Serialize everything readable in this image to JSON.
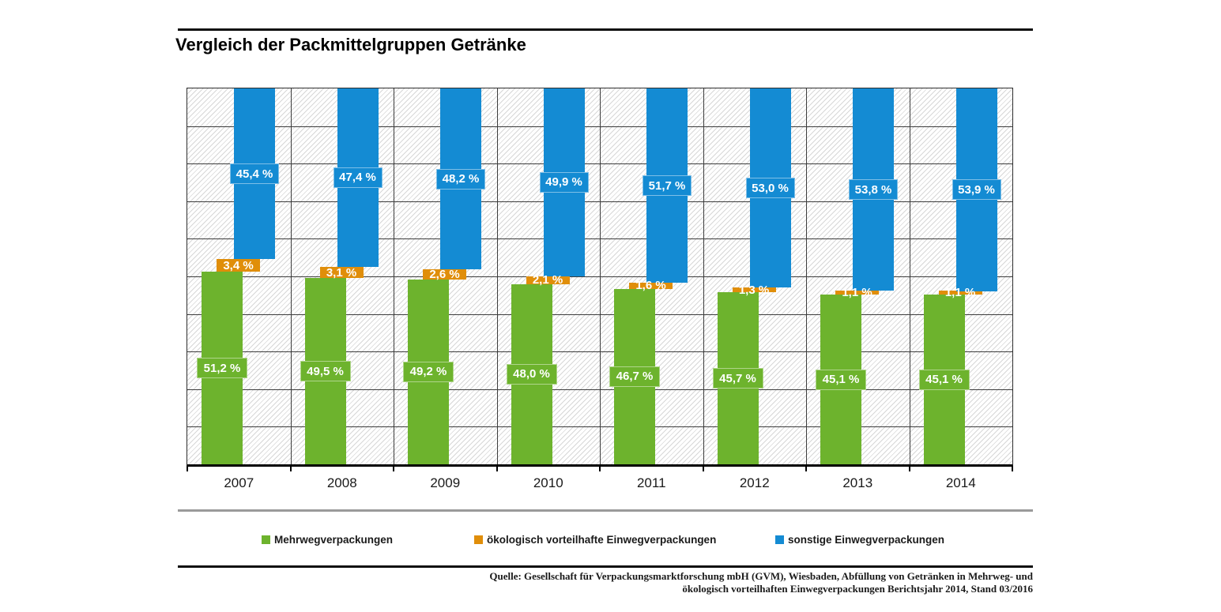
{
  "title": "Vergleich der Packmittelgruppen Getränke",
  "colors": {
    "green": "#6db32d",
    "orange": "#e08e0a",
    "blue": "#148bd3",
    "grid": "#3c3c3c",
    "hatch": "#d7d7d7"
  },
  "chart_data": {
    "type": "bar",
    "subtype": "100-percent-stacked-offset-columns",
    "title": "Vergleich der Packmittelgruppen Getränke",
    "categories": [
      "2007",
      "2008",
      "2009",
      "2010",
      "2011",
      "2012",
      "2013",
      "2014"
    ],
    "series": [
      {
        "name": "Mehrwegverpackungen",
        "color_key": "green",
        "values": [
          51.2,
          49.5,
          49.2,
          48.0,
          46.7,
          45.7,
          45.1,
          45.1
        ],
        "labels": [
          "51,2 %",
          "49,5 %",
          "49,2 %",
          "48,0 %",
          "46,7 %",
          "45,7 %",
          "45,1 %",
          "45,1 %"
        ]
      },
      {
        "name": "ökologisch vorteilhafte Einwegverpackungen",
        "color_key": "orange",
        "values": [
          3.4,
          3.1,
          2.6,
          2.1,
          1.6,
          1.3,
          1.1,
          1.1
        ],
        "labels": [
          "3,4 %",
          "3,1 %",
          "2,6 %",
          "2,1 %",
          "1,6 %",
          "1,3 %",
          "1,1 %",
          "1,1 %"
        ]
      },
      {
        "name": "sonstige Einwegverpackungen",
        "color_key": "blue",
        "values": [
          45.4,
          47.4,
          48.2,
          49.9,
          51.7,
          53.0,
          53.8,
          53.9
        ],
        "labels": [
          "45,4 %",
          "47,4 %",
          "48,2 %",
          "49,9 %",
          "51,7 %",
          "53,0 %",
          "53,8 %",
          "53,9 %"
        ]
      }
    ],
    "ylim": [
      0,
      100
    ],
    "grid": {
      "rows": 10,
      "cols": 8,
      "visible": true,
      "hatch_background": true
    },
    "legend_position": "bottom"
  },
  "source_line1": "Quelle: Gesellschaft für Verpackungsmarktforschung mbH (GVM), Wiesbaden, Abfüllung von Getränken in Mehrweg- und",
  "source_line2": "ökologisch vorteilhaften Einwegverpackungen Berichtsjahr 2014, Stand 03/2016"
}
